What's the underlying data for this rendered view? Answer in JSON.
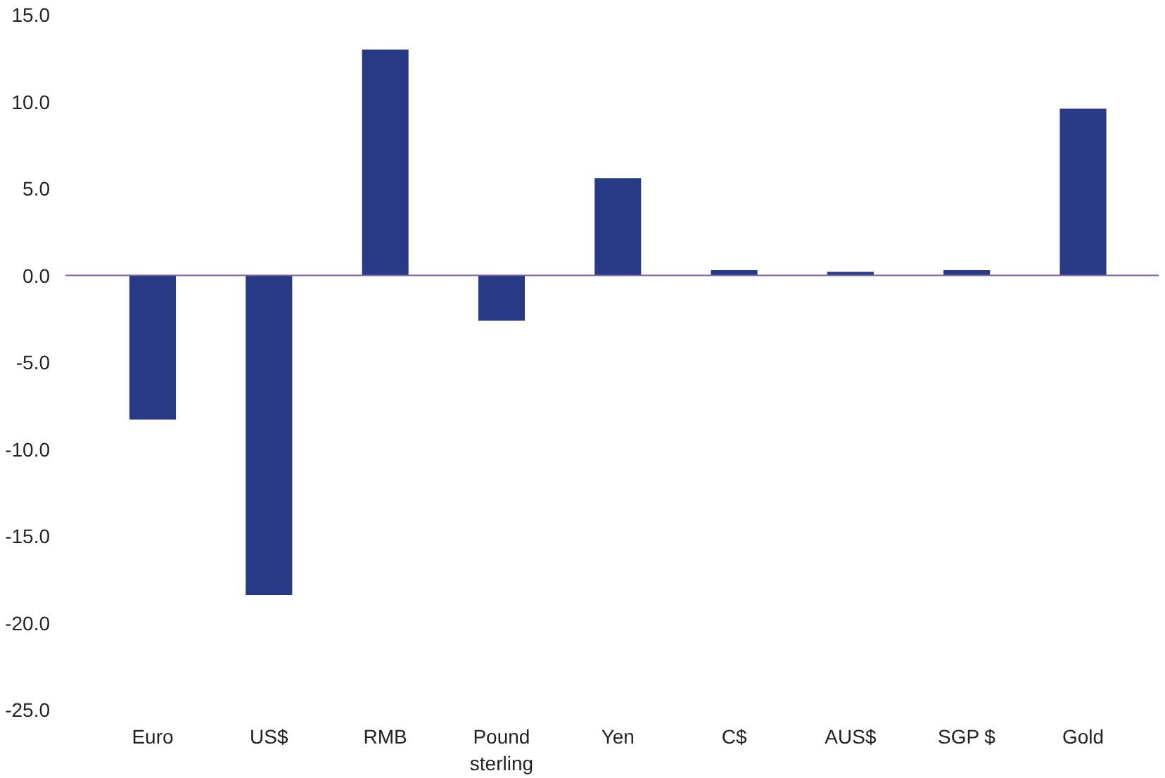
{
  "chart_data": {
    "type": "bar",
    "categories": [
      "Euro",
      "US$",
      "RMB",
      "Pound\nsterling",
      "Yen",
      "C$",
      "AUS$",
      "SGP $",
      "Gold"
    ],
    "values": [
      -8.3,
      -18.4,
      13.0,
      -2.6,
      5.6,
      0.3,
      0.2,
      0.3,
      9.6
    ],
    "color": "#283a85",
    "ylim": [
      -25,
      15
    ],
    "yticks": [
      {
        "value": -25,
        "label": "-25.0"
      },
      {
        "value": -20,
        "label": "-20.0"
      },
      {
        "value": -15,
        "label": "-15.0"
      },
      {
        "value": -10,
        "label": "-10.0"
      },
      {
        "value": -5,
        "label": "-5.0"
      },
      {
        "value": 0,
        "label": "0.0"
      },
      {
        "value": 5,
        "label": "5.0"
      },
      {
        "value": 10,
        "label": "10.0"
      },
      {
        "value": 15,
        "label": "15.0"
      }
    ],
    "grid": false,
    "ref_lines": [
      {
        "axis": "y",
        "value": 0,
        "color": "#7b5ea7"
      }
    ]
  }
}
